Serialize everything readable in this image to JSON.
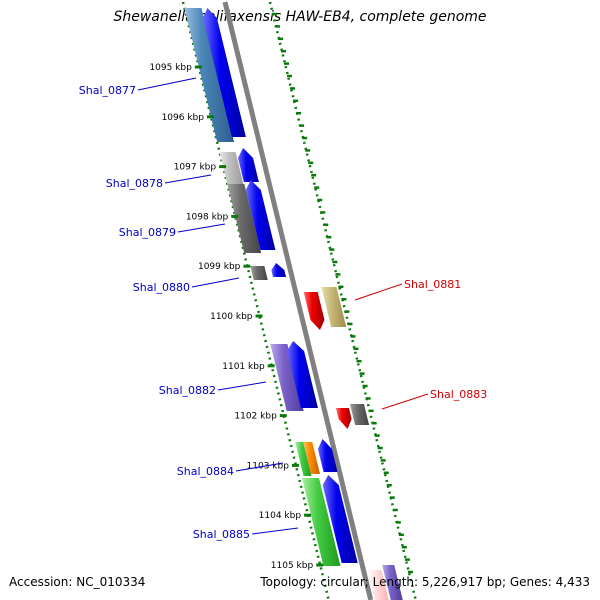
{
  "title": "Shewanella halifaxensis HAW-EB4, complete genome",
  "footer": {
    "accession": "Accession: NC_010334",
    "summary": "Topology: circular; Length: 5,226,917 bp; Genes: 4,433"
  },
  "ruler": {
    "labels": [
      "1095 kbp",
      "1096 kbp",
      "1097 kbp",
      "1098 kbp",
      "1099 kbp",
      "1100 kbp",
      "1101 kbp",
      "1102 kbp",
      "1103 kbp",
      "1104 kbp",
      "1105 kbp"
    ]
  },
  "colors": {
    "backbone": "#808080",
    "guide": "#0a7a0a",
    "forward_label": "#0000c8",
    "reverse_label": "#d00000",
    "arrow_blue": "#0000ee"
  },
  "genes": [
    {
      "id": "Shal_0877",
      "strand": "forward",
      "color": "#4a86b8"
    },
    {
      "id": "Shal_0878",
      "strand": "forward",
      "color": "#c0c0c0"
    },
    {
      "id": "Shal_0879",
      "strand": "forward",
      "color": "#666666"
    },
    {
      "id": "Shal_0880",
      "strand": "forward",
      "color": "#666666"
    },
    {
      "id": "Shal_0881",
      "strand": "reverse",
      "color": "#e00000"
    },
    {
      "id": "Shal_0882",
      "strand": "forward",
      "color": "#7a62c8"
    },
    {
      "id": "Shal_0883",
      "strand": "reverse",
      "color": "#e00000"
    },
    {
      "id": "Shal_0884",
      "strand": "forward",
      "color": "#44cc44"
    },
    {
      "id": "Shal_0885",
      "strand": "forward",
      "color": "#44cc44"
    }
  ]
}
